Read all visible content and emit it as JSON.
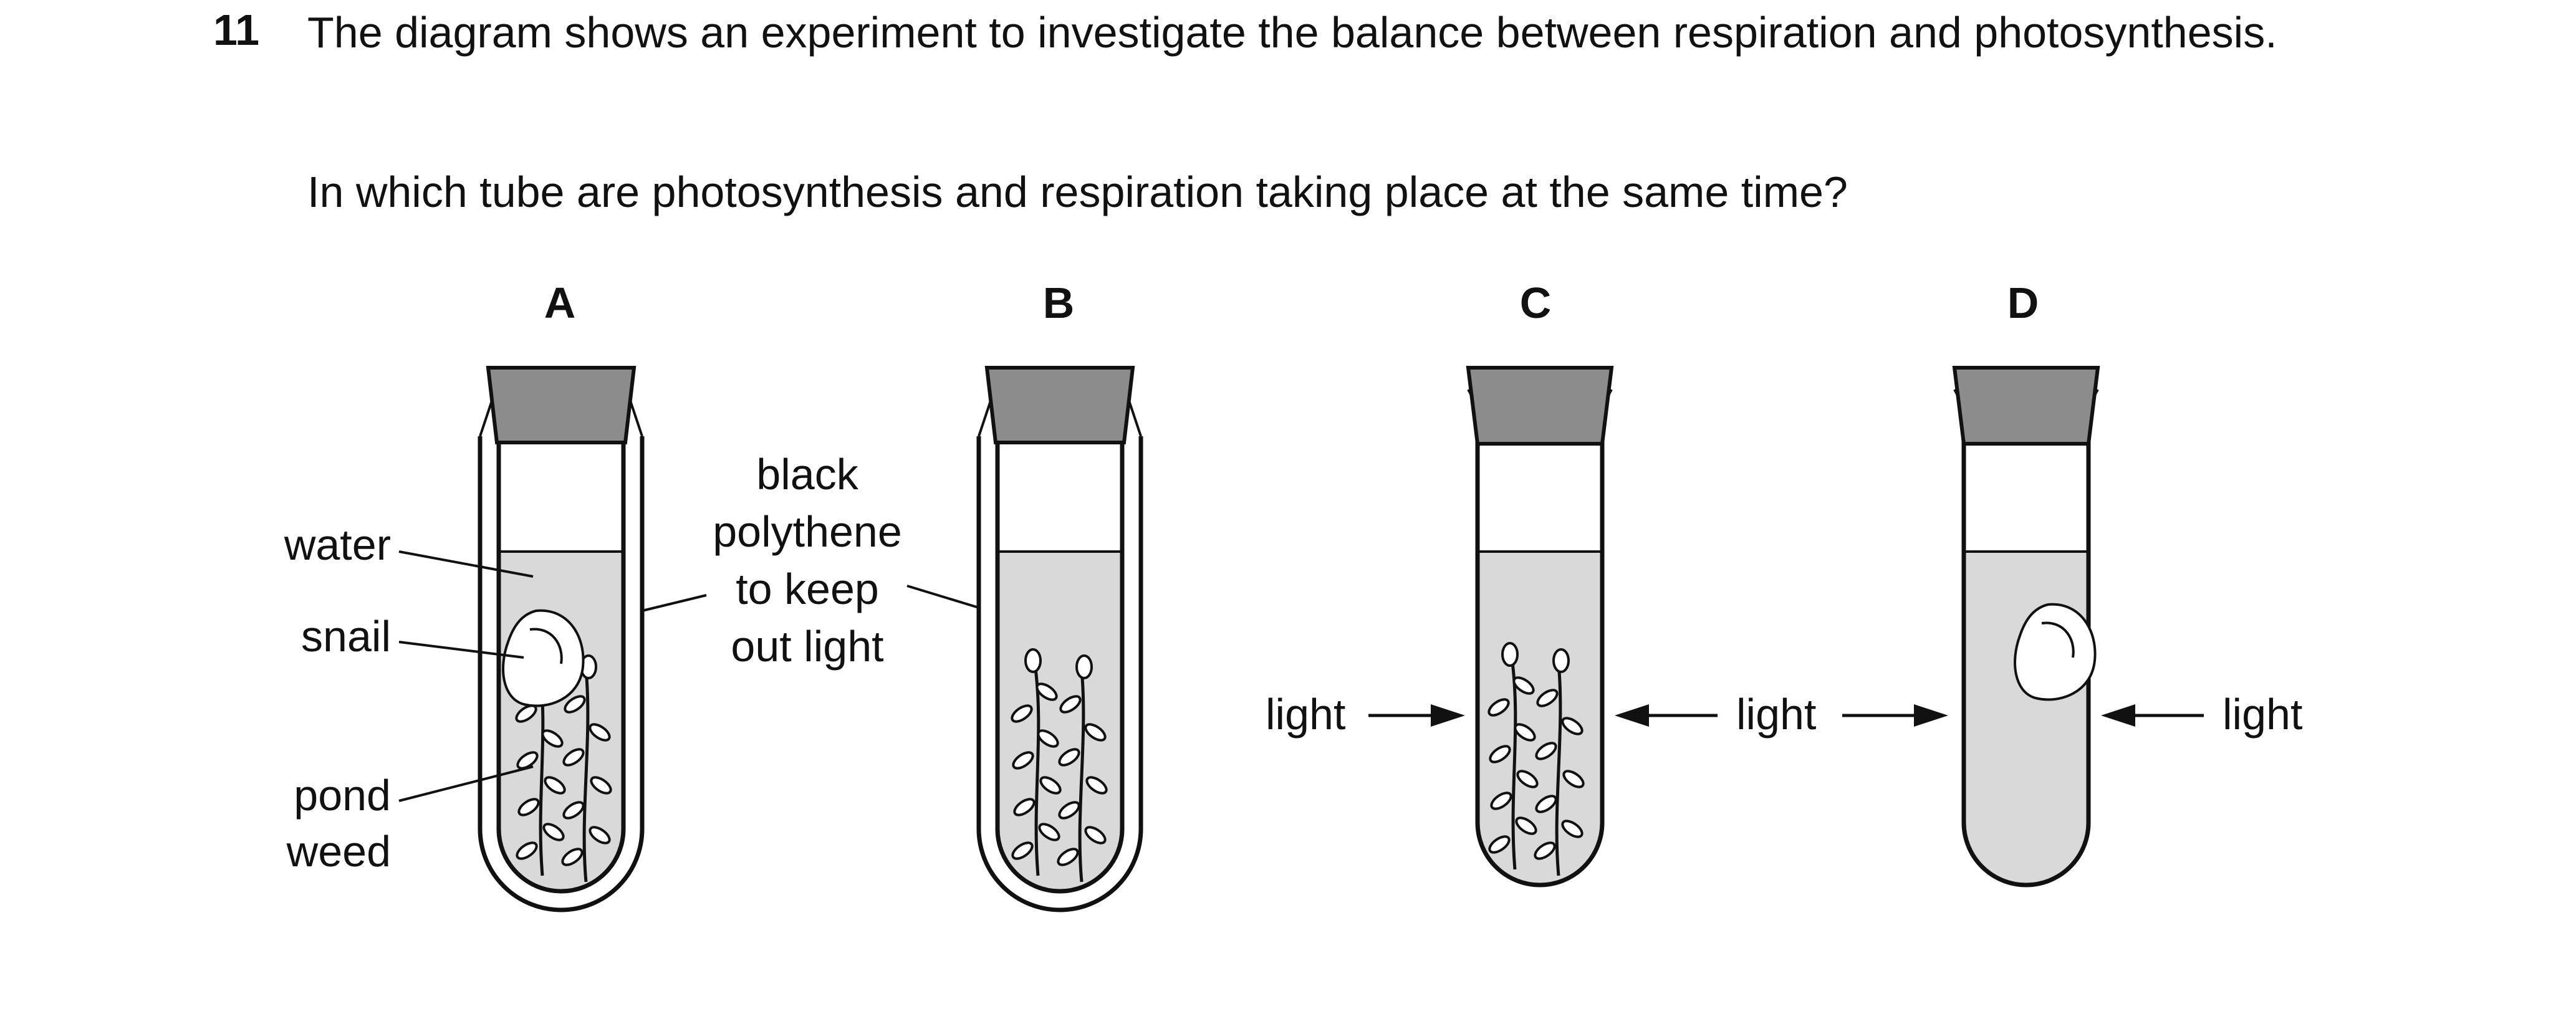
{
  "question": {
    "number": "11",
    "stem": "The diagram shows an experiment to investigate the balance between respiration and photosynthesis.",
    "ask": "In which tube are photosynthesis and respiration taking place at the same time?"
  },
  "options": {
    "a": "A",
    "b": "B",
    "c": "C",
    "d": "D"
  },
  "labels": {
    "water": "water",
    "snail": "snail",
    "pond_weed_line1": "pond",
    "pond_weed_line2": "weed",
    "polythene_line1": "black",
    "polythene_line2": "polythene",
    "polythene_line3": "to keep",
    "polythene_line4": "out light",
    "light": "light"
  },
  "colors": {
    "water": "#d9d9d9",
    "bung": "#8c8c8c",
    "ink": "#111111"
  },
  "tubes": [
    {
      "option": "A",
      "contents": [
        "snail",
        "pond-weed"
      ],
      "covered": true,
      "lit": false
    },
    {
      "option": "B",
      "contents": [
        "pond-weed"
      ],
      "covered": true,
      "lit": false
    },
    {
      "option": "C",
      "contents": [
        "pond-weed"
      ],
      "covered": false,
      "lit": true
    },
    {
      "option": "D",
      "contents": [
        "snail"
      ],
      "covered": false,
      "lit": true
    }
  ]
}
